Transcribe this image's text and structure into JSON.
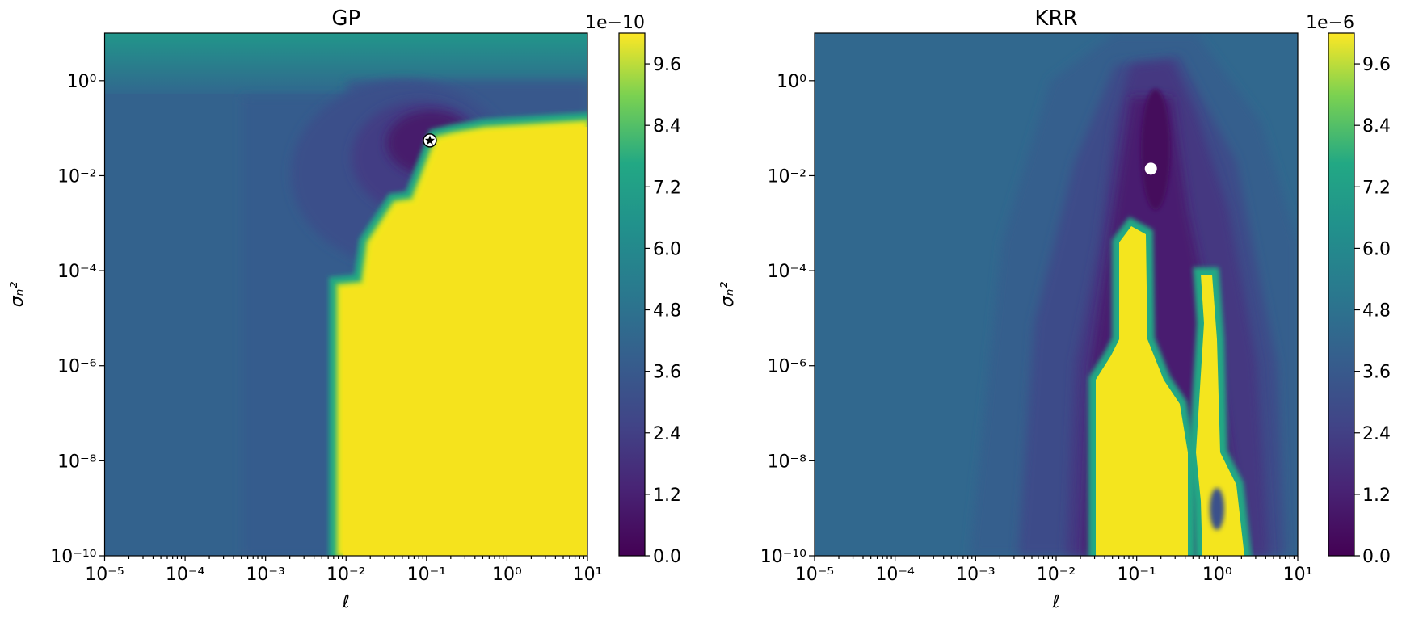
{
  "chart_data": [
    {
      "type": "contour",
      "title": "GP",
      "xlabel": "ℓ",
      "ylabel": "σₙ²",
      "xscale": "log",
      "yscale": "log",
      "xlim": [
        1e-05,
        10
      ],
      "ylim": [
        1e-10,
        10
      ],
      "xticks": [
        {
          "value": 1e-05,
          "label": "10⁻⁵"
        },
        {
          "value": 0.0001,
          "label": "10⁻⁴"
        },
        {
          "value": 0.001,
          "label": "10⁻³"
        },
        {
          "value": 0.01,
          "label": "10⁻²"
        },
        {
          "value": 0.1,
          "label": "10⁻¹"
        },
        {
          "value": 1,
          "label": "10⁰"
        },
        {
          "value": 10,
          "label": "10¹"
        }
      ],
      "yticks": [
        {
          "value": 1e-10,
          "label": "10⁻¹⁰"
        },
        {
          "value": 1e-08,
          "label": "10⁻⁸"
        },
        {
          "value": 1e-06,
          "label": "10⁻⁶"
        },
        {
          "value": 0.0001,
          "label": "10⁻⁴"
        },
        {
          "value": 0.01,
          "label": "10⁻²"
        },
        {
          "value": 1,
          "label": "10⁰"
        }
      ],
      "colorbar": {
        "colormap": "viridis",
        "lim": [
          0,
          10.2
        ],
        "offset_label": "1e−10",
        "ticks": [
          {
            "value": 0,
            "label": "0.0"
          },
          1.2,
          2.4,
          3.6,
          4.8,
          {
            "value": 6,
            "label": "6.0"
          },
          7.2,
          8.4,
          9.6
        ]
      },
      "marker": {
        "x": 0.11,
        "y": 0.055,
        "shape": "star",
        "color": "#ffffff"
      }
    },
    {
      "type": "contour",
      "title": "KRR",
      "xlabel": "ℓ",
      "ylabel": "σₙ²",
      "xscale": "log",
      "yscale": "log",
      "xlim": [
        1e-05,
        10
      ],
      "ylim": [
        1e-10,
        10
      ],
      "xticks": [
        {
          "value": 1e-05,
          "label": "10⁻⁵"
        },
        {
          "value": 0.0001,
          "label": "10⁻⁴"
        },
        {
          "value": 0.001,
          "label": "10⁻³"
        },
        {
          "value": 0.01,
          "label": "10⁻²"
        },
        {
          "value": 0.1,
          "label": "10⁻¹"
        },
        {
          "value": 1,
          "label": "10⁰"
        },
        {
          "value": 10,
          "label": "10¹"
        }
      ],
      "yticks": [
        {
          "value": 1e-10,
          "label": "10⁻¹⁰"
        },
        {
          "value": 1e-08,
          "label": "10⁻⁸"
        },
        {
          "value": 1e-06,
          "label": "10⁻⁶"
        },
        {
          "value": 0.0001,
          "label": "10⁻⁴"
        },
        {
          "value": 0.01,
          "label": "10⁻²"
        },
        {
          "value": 1,
          "label": "10⁰"
        }
      ],
      "colorbar": {
        "colormap": "viridis",
        "lim": [
          0,
          10.2
        ],
        "offset_label": "1e−6",
        "ticks": [
          {
            "value": 0,
            "label": "0.0"
          },
          1.2,
          2.4,
          3.6,
          4.8,
          {
            "value": 6,
            "label": "6.0"
          },
          7.2,
          8.4,
          9.6
        ]
      },
      "marker": {
        "x": 0.15,
        "y": 0.014,
        "shape": "circle",
        "color": "#ffffff"
      }
    }
  ]
}
